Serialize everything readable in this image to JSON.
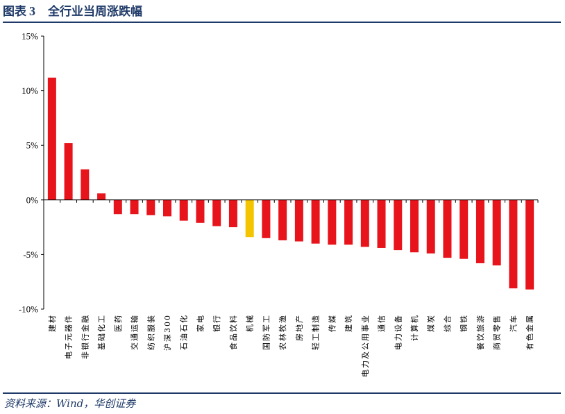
{
  "header": {
    "figure_label": "图表",
    "figure_number": "3",
    "title": "全行业当周涨跌幅"
  },
  "footer": {
    "source": "资料来源：Wind，华创证券"
  },
  "colors": {
    "bar": "#e8141c",
    "highlight": "#f5c400",
    "rule": "#1f3a68"
  },
  "chart_data": {
    "type": "bar",
    "title": "全行业当周涨跌幅",
    "xlabel": "",
    "ylabel": "",
    "ylim": [
      -10,
      15
    ],
    "yticks": [
      15,
      10,
      5,
      0,
      -5,
      -10
    ],
    "ytick_labels": [
      "15%",
      "10%",
      "5%",
      "0%",
      "-5%",
      "-10%"
    ],
    "grid": false,
    "legend": "none",
    "highlight_category": "机械",
    "categories": [
      "建材",
      "电子元器件",
      "非银行金融",
      "基础化工",
      "医药",
      "交通运输",
      "纺织服装",
      "沪深300",
      "石油石化",
      "家电",
      "银行",
      "食品饮料",
      "机械",
      "国防军工",
      "农林牧渔",
      "房地产",
      "轻工制造",
      "传媒",
      "建筑",
      "电力及公用事业",
      "通信",
      "电力设备",
      "计算机",
      "煤炭",
      "综合",
      "钢铁",
      "餐饮旅游",
      "商贸零售",
      "汽车",
      "有色金属"
    ],
    "values": [
      11.2,
      5.2,
      2.8,
      0.6,
      -1.3,
      -1.3,
      -1.4,
      -1.5,
      -1.9,
      -2.1,
      -2.4,
      -2.5,
      -3.4,
      -3.5,
      -3.7,
      -3.8,
      -4.0,
      -4.1,
      -4.1,
      -4.3,
      -4.4,
      -4.6,
      -4.8,
      -4.9,
      -5.3,
      -5.4,
      -5.8,
      -6.0,
      -8.1,
      -8.2
    ]
  }
}
